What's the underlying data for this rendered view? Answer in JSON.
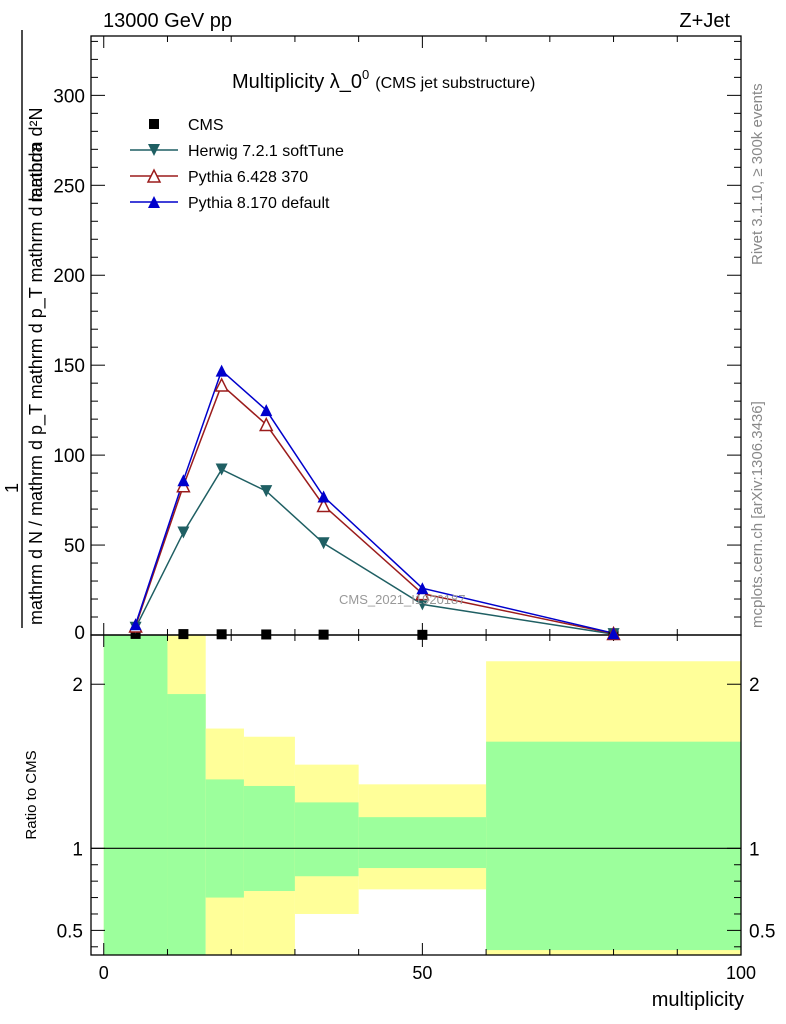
{
  "header": {
    "energy_label": "13000 GeV pp",
    "process_label": "Z+Jet"
  },
  "side_labels": {
    "rivet": "Rivet 3.1.10, ≥ 300k events",
    "mcplots": "mcplots.cern.ch [arXiv:1306.3436]"
  },
  "watermark": "CMS_2021_I1920187",
  "colors": {
    "cms": "#000000",
    "herwig": "#1f5f63",
    "pythia6": "#9b1c1c",
    "pythia8": "#0000cc",
    "band_green": "#9cff9c",
    "band_yellow": "#ffff99"
  },
  "chart_data": [
    {
      "type": "line",
      "title_main": "Multiplicity λ_0",
      "title_sup": "0",
      "title_sub": "(CMS jet substructure)",
      "ylabel_top": "1",
      "ylabel_num": "mathrm d²N",
      "ylabel_den": "mathrm d N / mathrm d p_T mathrm d p_T mathrm d lambda",
      "xlim": [
        -2,
        100
      ],
      "ylim": [
        0,
        333
      ],
      "xticks": [
        0,
        50,
        100
      ],
      "yticks": [
        50,
        100,
        150,
        200,
        250,
        300
      ],
      "ytick_labels": [
        "50",
        "100",
        "150",
        "200",
        "250",
        "300"
      ],
      "legend_position": "top-left",
      "x": [
        5,
        12.5,
        18.5,
        25.5,
        34.5,
        50,
        80
      ],
      "series": [
        {
          "name": "CMS",
          "marker": "square",
          "values": [
            0.6,
            0.5,
            0.4,
            0.3,
            0.2,
            0.1,
            0.0
          ]
        },
        {
          "name": "Herwig 7.2.1 softTune",
          "marker": "triangle-down",
          "values": [
            4,
            57,
            92,
            80,
            51,
            17,
            0.5
          ]
        },
        {
          "name": "Pythia 6.428 370",
          "marker": "triangle-up-open",
          "values": [
            5,
            83,
            139,
            117,
            72,
            23,
            0.8
          ]
        },
        {
          "name": "Pythia 8.170 default",
          "marker": "triangle-up",
          "values": [
            6,
            86,
            147,
            125,
            77,
            26,
            1.0
          ]
        }
      ]
    },
    {
      "type": "area",
      "ylabel": "Ratio to CMS",
      "xlabel": "multiplicity",
      "xlim": [
        -2,
        100
      ],
      "ylim": [
        0.35,
        2.3
      ],
      "yticks": [
        0.5,
        1,
        2
      ],
      "ytick_labels": [
        "0.5",
        "1",
        "2"
      ],
      "xticks": [
        0,
        50,
        100
      ],
      "xtick_labels": [
        "0",
        "50",
        "100"
      ],
      "reference_line": 1,
      "bins": [
        {
          "x0": 0,
          "x1": 10,
          "yellow": [
            0.35,
            2.3
          ],
          "green": [
            0.35,
            2.3
          ]
        },
        {
          "x0": 10,
          "x1": 16,
          "yellow": [
            0.35,
            2.3
          ],
          "green": [
            0.35,
            1.94
          ]
        },
        {
          "x0": 16,
          "x1": 22,
          "yellow": [
            0.35,
            1.73
          ],
          "green": [
            0.7,
            1.42
          ]
        },
        {
          "x0": 22,
          "x1": 30,
          "yellow": [
            0.35,
            1.68
          ],
          "green": [
            0.74,
            1.38
          ]
        },
        {
          "x0": 30,
          "x1": 40,
          "yellow": [
            0.6,
            1.51
          ],
          "green": [
            0.83,
            1.28
          ]
        },
        {
          "x0": 40,
          "x1": 60,
          "yellow": [
            0.75,
            1.39
          ],
          "green": [
            0.88,
            1.19
          ]
        },
        {
          "x0": 60,
          "x1": 100,
          "yellow": [
            0.35,
            2.14
          ],
          "green": [
            0.38,
            1.65
          ]
        }
      ]
    }
  ]
}
